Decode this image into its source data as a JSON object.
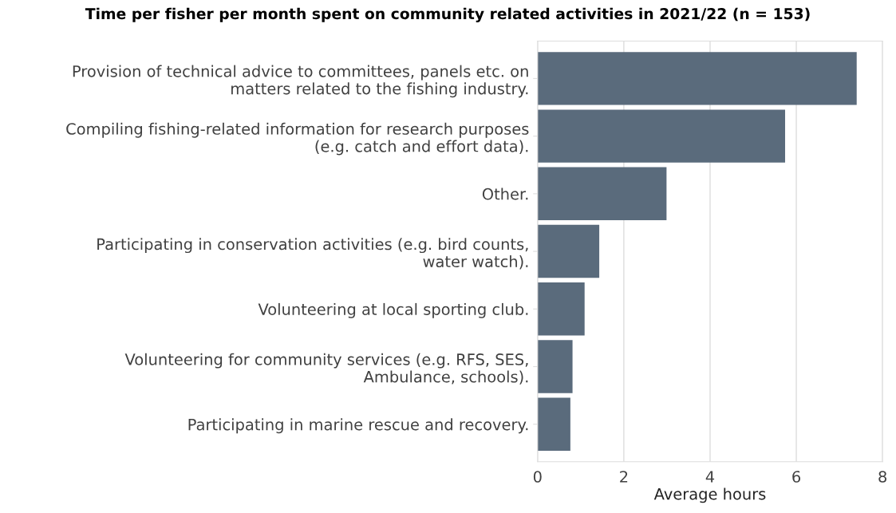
{
  "chart_data": {
    "type": "bar",
    "orientation": "horizontal",
    "title": "Time per fisher per month spent on community related activities in 2021/22 (n = 153)",
    "xlabel": "Average hours",
    "categories": [
      "Provision of technical advice to committees, panels etc. on\nmatters related to the fishing industry.",
      "Compiling fishing-related information for research purposes\n(e.g. catch and effort data).",
      "Other.",
      "Participating in conservation activities (e.g. bird counts,\nwater watch).",
      "Volunteering at local sporting club.",
      "Volunteering for community services (e.g. RFS, SES,\nAmbulance, schools).",
      "Participating in marine rescue and recovery."
    ],
    "values": [
      7.4,
      5.74,
      2.99,
      1.43,
      1.09,
      0.81,
      0.76
    ],
    "color": "#5a6b7c",
    "xlim": [
      0,
      8
    ],
    "xticks": [
      0,
      2,
      4,
      6,
      8
    ],
    "grid": "x"
  }
}
